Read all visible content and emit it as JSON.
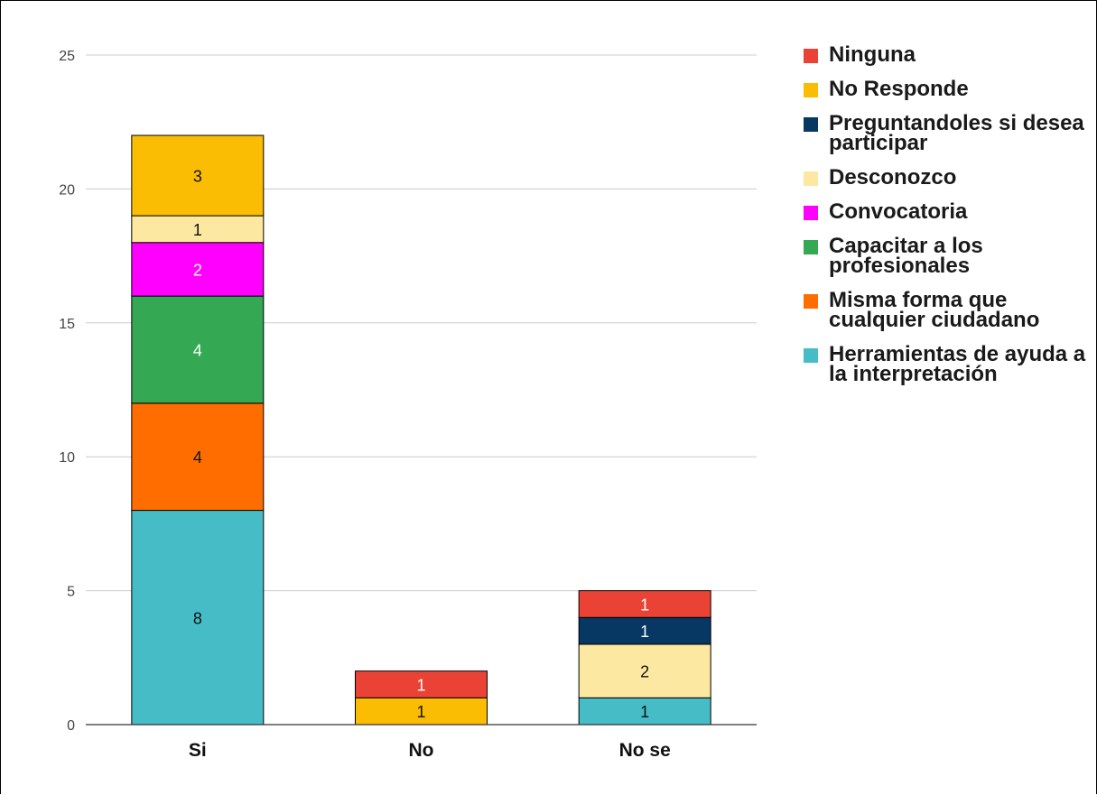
{
  "chart_data": {
    "type": "bar",
    "stacked": true,
    "categories": [
      "Si",
      "No",
      "No se"
    ],
    "ylim": [
      0,
      25
    ],
    "yticks": [
      0,
      5,
      10,
      15,
      20,
      25
    ],
    "grid": true,
    "legend_position": "right",
    "series": [
      {
        "name": "Herramientas de ayuda a la interpretación",
        "color": "#46bdc6",
        "label_color": "#111111",
        "values": [
          8,
          0,
          1
        ]
      },
      {
        "name": "Misma forma que cualquier ciudadano",
        "color": "#ff6d01",
        "label_color": "#111111",
        "values": [
          4,
          0,
          0
        ]
      },
      {
        "name": "Capacitar a los profesionales",
        "color": "#34a853",
        "label_color": "#ffffff",
        "values": [
          4,
          0,
          0
        ]
      },
      {
        "name": "Convocatoria",
        "color": "#ff00ff",
        "label_color": "#ffffff",
        "values": [
          2,
          0,
          0
        ]
      },
      {
        "name": "Desconozco",
        "color": "#fce8a0",
        "label_color": "#111111",
        "values": [
          1,
          0,
          2
        ]
      },
      {
        "name": "Preguntandoles si desea participar",
        "color": "#073763",
        "label_color": "#ffffff",
        "values": [
          0,
          0,
          1
        ]
      },
      {
        "name": "No Responde",
        "color": "#fbbc04",
        "label_color": "#111111",
        "values": [
          3,
          1,
          0
        ]
      },
      {
        "name": "Ninguna",
        "color": "#ea4335",
        "label_color": "#ffffff",
        "values": [
          0,
          1,
          1
        ]
      }
    ]
  }
}
